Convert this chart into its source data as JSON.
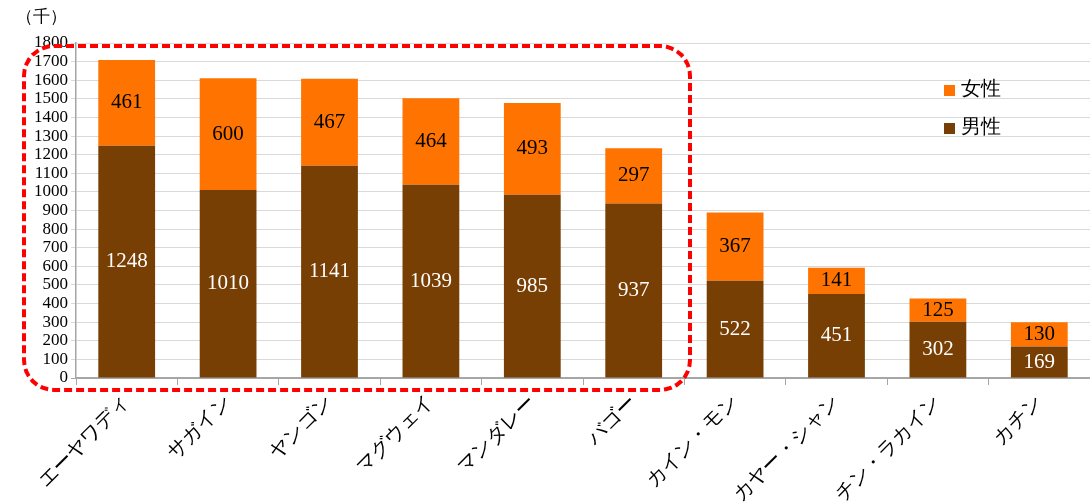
{
  "chart_data": {
    "type": "bar",
    "ylabel": "（千）",
    "categories": [
      "エーヤワディ",
      "サガイン",
      "ヤンゴン",
      "マグウェイ",
      "マンダレー",
      "バゴー",
      "カイン・モン",
      "カヤー・シャン",
      "チン・ラカイン",
      "カチン"
    ],
    "series": [
      {
        "name": "男性",
        "color": "#783f04",
        "values": [
          1248,
          1010,
          1141,
          1039,
          985,
          937,
          522,
          451,
          302,
          169
        ]
      },
      {
        "name": "女性",
        "color": "#ff7300",
        "values": [
          461,
          600,
          467,
          464,
          493,
          297,
          367,
          141,
          125,
          130
        ]
      }
    ],
    "stacked": true,
    "ylim": [
      0,
      1800
    ],
    "yticks": [
      0,
      100,
      200,
      300,
      400,
      500,
      600,
      700,
      800,
      900,
      1000,
      1100,
      1200,
      1300,
      1400,
      1500,
      1600,
      1700,
      1800
    ],
    "grid": "y",
    "legend": "top right",
    "data_labels": true
  }
}
